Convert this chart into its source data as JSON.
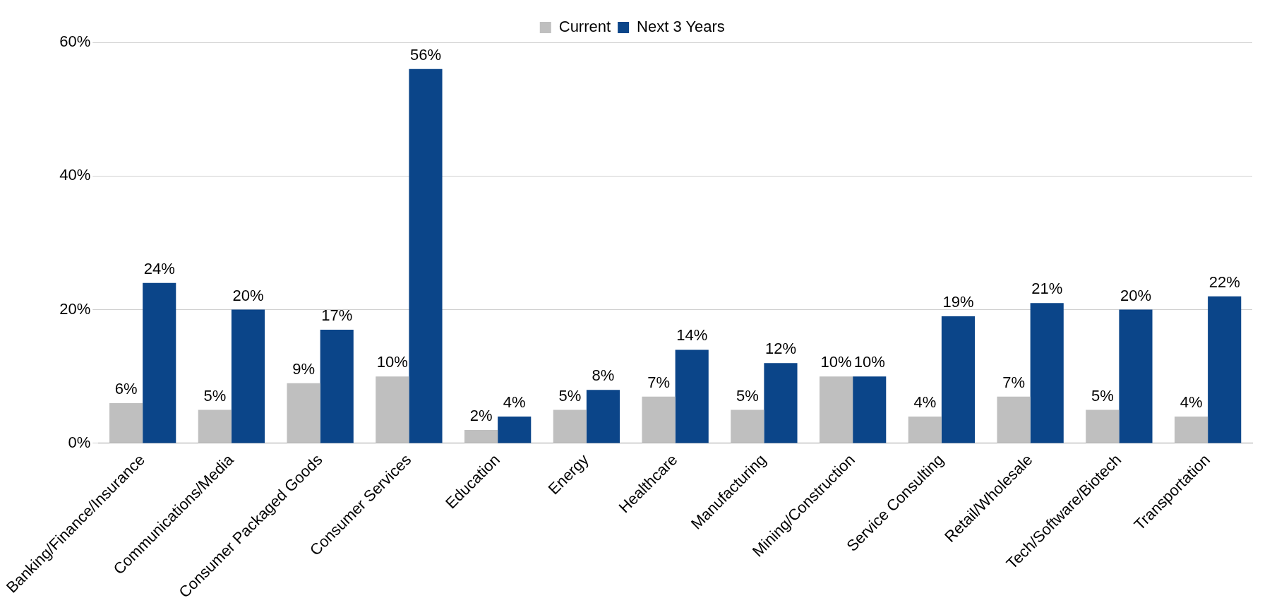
{
  "chart_data": {
    "type": "bar",
    "categories": [
      "Banking/Finance/Insurance",
      "Communications/Media",
      "Consumer Packaged Goods",
      "Consumer Services",
      "Education",
      "Energy",
      "Healthcare",
      "Manufacturing",
      "Mining/Construction",
      "Service Consulting",
      "Retail/Wholesale",
      "Tech/Software/Biotech",
      "Transportation"
    ],
    "series": [
      {
        "name": "Current",
        "color": "#bfbfbf",
        "values": [
          6,
          5,
          9,
          10,
          2,
          5,
          7,
          5,
          10,
          4,
          7,
          5,
          4
        ],
        "value_labels": [
          "6%",
          "5%",
          "9%",
          "10%",
          "2%",
          "5%",
          "7%",
          "5%",
          "10%",
          "4%",
          "7%",
          "5%",
          "4%"
        ]
      },
      {
        "name": "Next 3 Years",
        "color": "#0b4589",
        "values": [
          24,
          20,
          17,
          56,
          4,
          8,
          14,
          12,
          10,
          19,
          21,
          20,
          22
        ],
        "value_labels": [
          "24%",
          "20%",
          "17%",
          "56%",
          "4%",
          "8%",
          "14%",
          "12%",
          "10%",
          "19%",
          "21%",
          "20%",
          "22%"
        ]
      }
    ],
    "ylim": [
      0,
      60
    ],
    "yticks": [
      {
        "value": 0,
        "label": "0%"
      },
      {
        "value": 20,
        "label": "20%"
      },
      {
        "value": 40,
        "label": "40%"
      },
      {
        "value": 60,
        "label": "60%"
      }
    ],
    "grid": "y",
    "legend": "top"
  }
}
